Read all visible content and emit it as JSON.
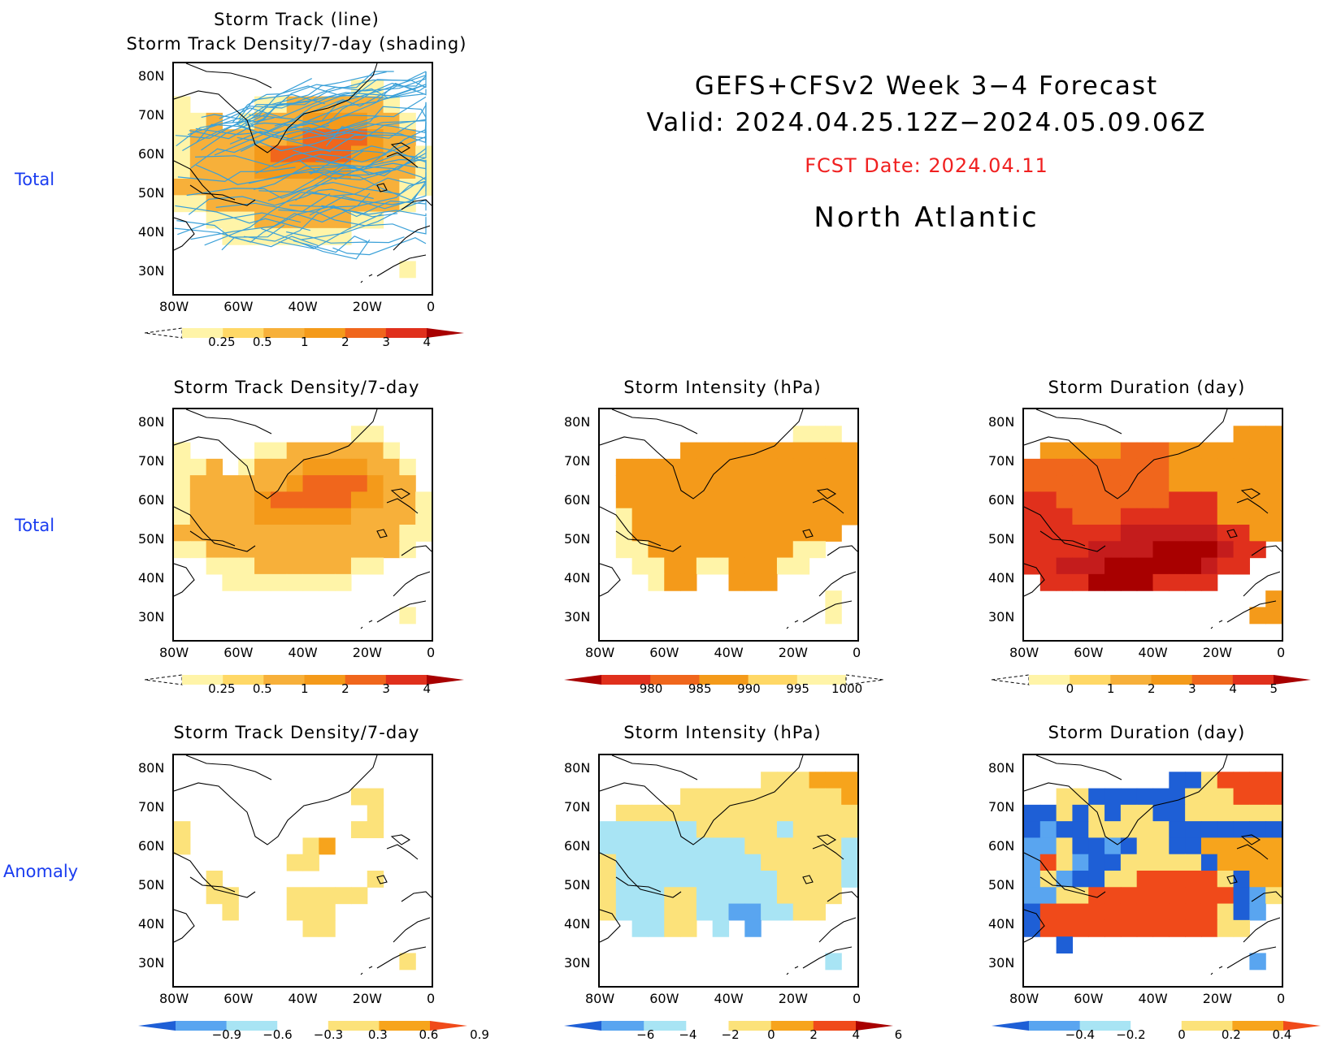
{
  "header": {
    "line1": "GEFS+CFSv2  Week  3−4  Forecast",
    "line2": "Valid:  2024.04.25.12Z−2024.05.09.06Z",
    "fcst": "FCST Date: 2024.04.11",
    "region": "North  Atlantic",
    "fcst_color": "#f02020"
  },
  "row_labels": [
    "Total",
    "Total",
    "Anomaly"
  ],
  "lat_ticks": [
    "80N",
    "70N",
    "60N",
    "50N",
    "40N",
    "30N"
  ],
  "lon_ticks": [
    "80W",
    "60W",
    "40W",
    "20W",
    "0"
  ],
  "panels": [
    {
      "id": "p1",
      "title1": "Storm Track (line)",
      "title2": "Storm Track Density/7-day (shading)",
      "field": "density",
      "lines": true,
      "cbar": {
        "colors": [
          "#fff",
          "#fff4a8",
          "#ffd866",
          "#f7b03a",
          "#f49a1a",
          "#f0661c",
          "#e0301c",
          "#a80000"
        ],
        "labels": [
          "0.25",
          "0.5",
          "1",
          "2",
          "3",
          "4"
        ],
        "kind": "right"
      }
    },
    {
      "id": "p2",
      "title1": "Storm Track Density/7-day",
      "field": "density",
      "lines": false,
      "cbar": {
        "colors": [
          "#fff",
          "#fff4a8",
          "#ffd866",
          "#f7b03a",
          "#f49a1a",
          "#f0661c",
          "#e0301c",
          "#a80000"
        ],
        "labels": [
          "0.25",
          "0.5",
          "1",
          "2",
          "3",
          "4"
        ],
        "kind": "right"
      }
    },
    {
      "id": "p3",
      "title1": "Storm Intensity (hPa)",
      "field": "intensity",
      "cbar": {
        "colors": [
          "#a80000",
          "#e0301c",
          "#f0661c",
          "#f49a1a",
          "#ffd866",
          "#fff4a8",
          "#fff"
        ],
        "labels": [
          "980",
          "985",
          "990",
          "995",
          "1000"
        ],
        "kind": "left"
      }
    },
    {
      "id": "p4",
      "title1": "Storm Duration (day)",
      "field": "duration",
      "cbar": {
        "colors": [
          "#fff",
          "#fff4a8",
          "#ffd866",
          "#f7b03a",
          "#f49a1a",
          "#f0661c",
          "#e0301c",
          "#a80000"
        ],
        "labels": [
          "0",
          "1",
          "2",
          "3",
          "4",
          "5"
        ],
        "kind": "right"
      }
    },
    {
      "id": "p5",
      "title1": "Storm Track Density/7-day",
      "field": "anom_density",
      "cbar": {
        "colors": [
          "#1e5fd6",
          "#59a5f0",
          "#a8e4f4",
          "#fff",
          "#fce27a",
          "#f7a41c",
          "#f04a1a"
        ],
        "labels": [
          "−0.9",
          "−0.6",
          "−0.3",
          "0.3",
          "0.6",
          "0.9"
        ],
        "kind": "both"
      }
    },
    {
      "id": "p6",
      "title1": "Storm Intensity (hPa)",
      "field": "anom_intensity",
      "cbar": {
        "colors": [
          "#1e5fd6",
          "#59a5f0",
          "#a8e4f4",
          "#fff",
          "#fce27a",
          "#f7a41c",
          "#f04a1a",
          "#a80000"
        ],
        "labels": [
          "−6",
          "−4",
          "−2",
          "0",
          "2",
          "4",
          "6"
        ],
        "kind": "both"
      }
    },
    {
      "id": "p7",
      "title1": "Storm Duration (day)",
      "field": "anom_duration",
      "cbar": {
        "colors": [
          "#1e5fd6",
          "#59a5f0",
          "#a8e4f4",
          "#fff",
          "#fce27a",
          "#f7a41c",
          "#f04a1a"
        ],
        "labels": [
          "−0.4",
          "−0.2",
          "0",
          "0.2",
          "0.4"
        ],
        "kind": "both"
      }
    }
  ]
}
